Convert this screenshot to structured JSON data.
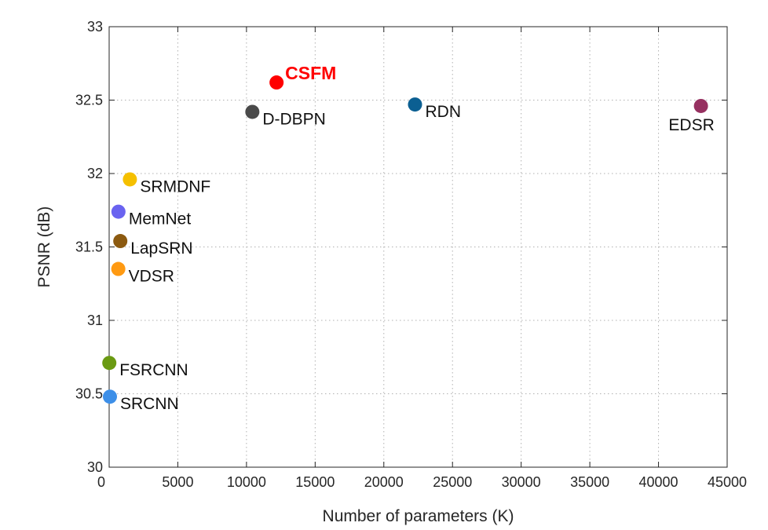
{
  "chart_data": {
    "type": "scatter",
    "title": "",
    "xlabel": "Number of parameters (K)",
    "ylabel": "PSNR (dB)",
    "xlim": [
      0,
      45000
    ],
    "ylim": [
      30,
      33
    ],
    "xticks": [
      0,
      5000,
      10000,
      15000,
      20000,
      25000,
      30000,
      35000,
      40000,
      45000
    ],
    "yticks": [
      30,
      30.5,
      31,
      31.5,
      32,
      32.5,
      33
    ],
    "grid": true,
    "points": [
      {
        "label": "SRCNN",
        "x": 57,
        "y": 30.48,
        "color": "#3d8fe8",
        "label_pos": "right"
      },
      {
        "label": "FSRCNN",
        "x": 12,
        "y": 30.71,
        "color": "#6a9a12",
        "label_pos": "right"
      },
      {
        "label": "VDSR",
        "x": 665,
        "y": 31.35,
        "color": "#ff9a12",
        "label_pos": "right"
      },
      {
        "label": "LapSRN",
        "x": 812,
        "y": 31.54,
        "color": "#8c5a10",
        "label_pos": "right"
      },
      {
        "label": "MemNet",
        "x": 677,
        "y": 31.74,
        "color": "#6a63f0",
        "label_pos": "right"
      },
      {
        "label": "SRMDNF",
        "x": 1510,
        "y": 31.96,
        "color": "#f5c000",
        "label_pos": "right"
      },
      {
        "label": "D-DBPN",
        "x": 10426,
        "y": 32.42,
        "color": "#4a4a4a",
        "label_pos": "right"
      },
      {
        "label": "CSFM",
        "x": 12188,
        "y": 32.62,
        "color": "#ff0000",
        "label_pos": "right",
        "highlight": true
      },
      {
        "label": "RDN",
        "x": 22271,
        "y": 32.47,
        "color": "#0b5f92",
        "label_pos": "right"
      },
      {
        "label": "EDSR",
        "x": 43090,
        "y": 32.46,
        "color": "#963060",
        "label_pos": "below"
      }
    ]
  }
}
